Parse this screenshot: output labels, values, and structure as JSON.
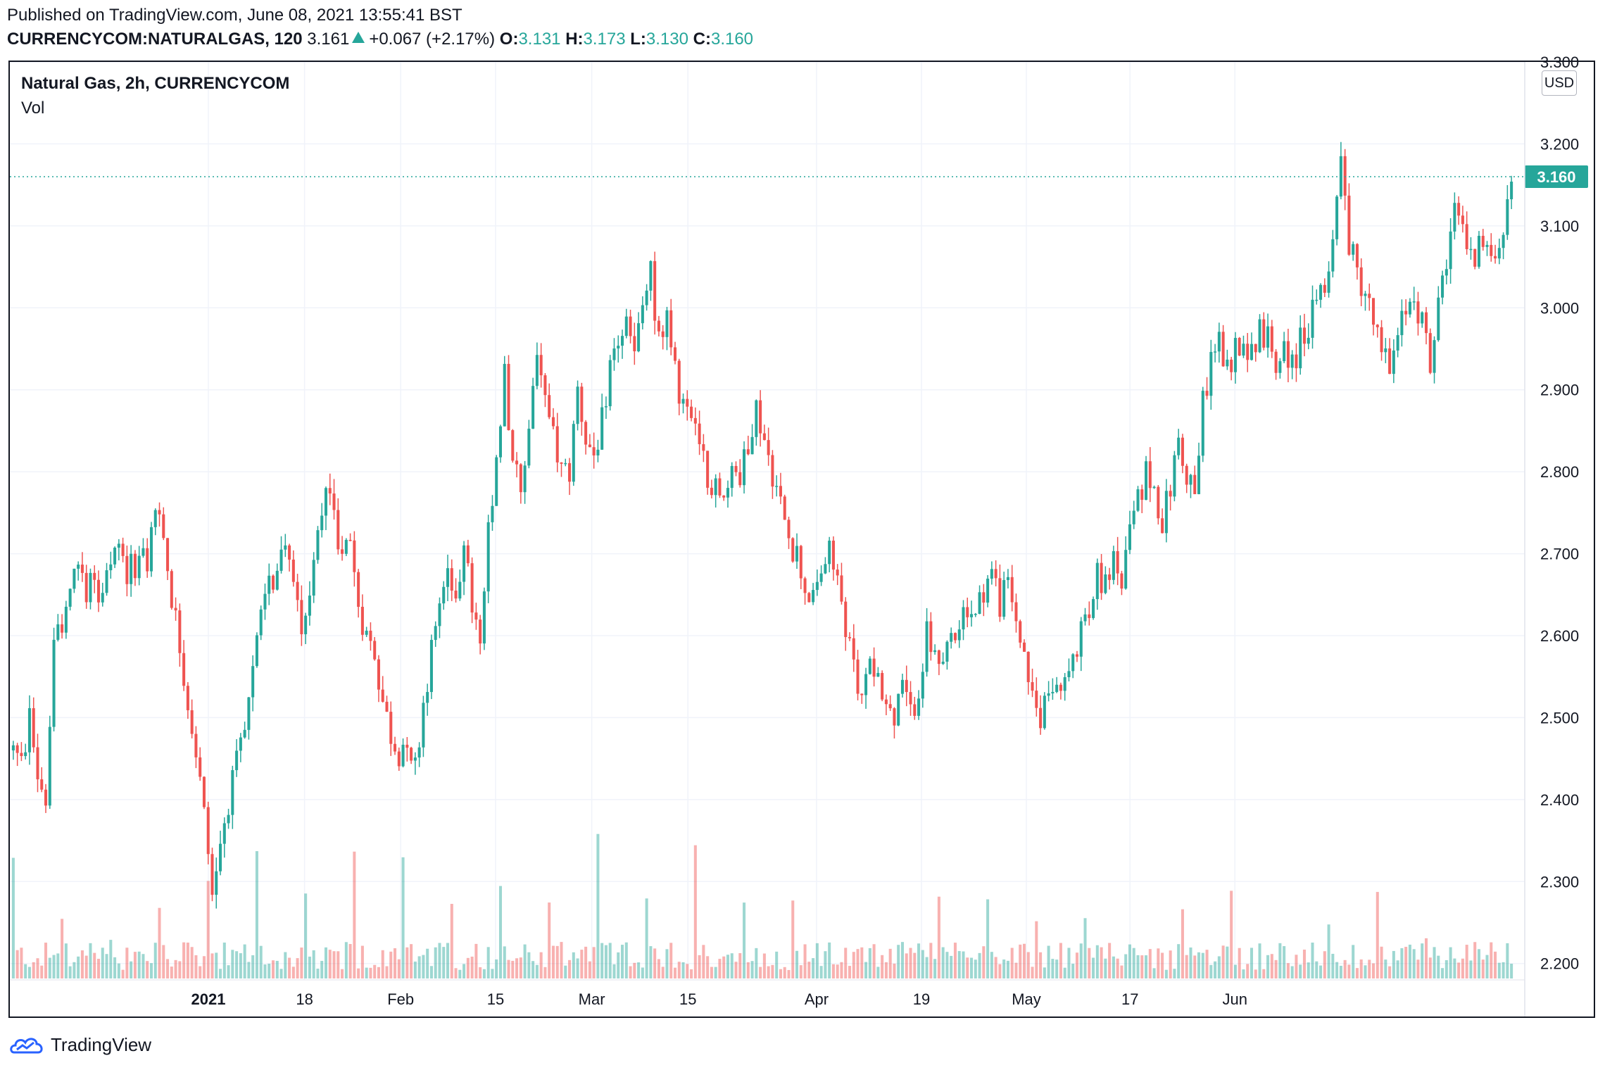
{
  "header": {
    "published": "Published on TradingView.com, June 08, 2021 13:55:41 BST",
    "symbol": "CURRENCYCOM:NATURALGAS, 120",
    "last": "3.161",
    "change": "+0.067 (+2.17%)",
    "open_label": "O:",
    "open": "3.131",
    "high_label": "H:",
    "high": "3.173",
    "low_label": "L:",
    "low": "3.130",
    "close_label": "C:",
    "close": "3.160"
  },
  "legend": {
    "title": "Natural Gas, 2h, CURRENCYCOM",
    "volume": "Vol"
  },
  "currency": "USD",
  "last_price_label": "3.160",
  "brand": "TradingView",
  "colors": {
    "up": "#26a69a",
    "down": "#ef5350",
    "grid": "#f0f3fa",
    "text": "#131722"
  },
  "chart_data": {
    "type": "candlestick",
    "title": "Natural Gas, 2h, CURRENCYCOM",
    "ylim": [
      2.18,
      3.3
    ],
    "y_ticks": [
      "3.300",
      "3.200",
      "3.100",
      "3.000",
      "2.900",
      "2.800",
      "2.700",
      "2.600",
      "2.500",
      "2.400",
      "2.300",
      "2.200"
    ],
    "x_ticks": [
      {
        "label": "2021",
        "t": 0.0,
        "bold": true
      },
      {
        "label": "18",
        "t": 0.077
      },
      {
        "label": "Feb",
        "t": 0.154
      },
      {
        "label": "15",
        "t": 0.23
      },
      {
        "label": "Mar",
        "t": 0.307
      },
      {
        "label": "15",
        "t": 0.384
      },
      {
        "label": "Apr",
        "t": 0.487
      },
      {
        "label": "19",
        "t": 0.571
      },
      {
        "label": "May",
        "t": 0.655
      },
      {
        "label": "17",
        "t": 0.738
      },
      {
        "label": "Jun",
        "t": 0.822
      }
    ],
    "last_price": 3.16,
    "path_points": [
      [
        0,
        2.46
      ],
      [
        2,
        2.44
      ],
      [
        4,
        2.5
      ],
      [
        6,
        2.43
      ],
      [
        8,
        2.4
      ],
      [
        10,
        2.58
      ],
      [
        12,
        2.62
      ],
      [
        14,
        2.66
      ],
      [
        16,
        2.69
      ],
      [
        18,
        2.66
      ],
      [
        20,
        2.68
      ],
      [
        22,
        2.64
      ],
      [
        24,
        2.68
      ],
      [
        26,
        2.7
      ],
      [
        28,
        2.67
      ],
      [
        30,
        2.69
      ],
      [
        33,
        2.69
      ],
      [
        35,
        2.76
      ],
      [
        37,
        2.72
      ],
      [
        39,
        2.65
      ],
      [
        41,
        2.59
      ],
      [
        43,
        2.52
      ],
      [
        45,
        2.46
      ],
      [
        47,
        2.38
      ],
      [
        49,
        2.29
      ],
      [
        51,
        2.35
      ],
      [
        53,
        2.4
      ],
      [
        55,
        2.44
      ],
      [
        57,
        2.48
      ],
      [
        59,
        2.55
      ],
      [
        61,
        2.62
      ],
      [
        63,
        2.66
      ],
      [
        65,
        2.68
      ],
      [
        67,
        2.72
      ],
      [
        69,
        2.66
      ],
      [
        71,
        2.62
      ],
      [
        73,
        2.65
      ],
      [
        75,
        2.72
      ],
      [
        77,
        2.8
      ],
      [
        79,
        2.74
      ],
      [
        81,
        2.7
      ],
      [
        83,
        2.72
      ],
      [
        85,
        2.64
      ],
      [
        87,
        2.6
      ],
      [
        89,
        2.58
      ],
      [
        91,
        2.52
      ],
      [
        93,
        2.48
      ],
      [
        95,
        2.46
      ],
      [
        97,
        2.48
      ],
      [
        99,
        2.44
      ],
      [
        101,
        2.52
      ],
      [
        103,
        2.58
      ],
      [
        105,
        2.64
      ],
      [
        107,
        2.68
      ],
      [
        109,
        2.66
      ],
      [
        111,
        2.7
      ],
      [
        113,
        2.64
      ],
      [
        115,
        2.58
      ],
      [
        117,
        2.72
      ],
      [
        119,
        2.8
      ],
      [
        121,
        2.92
      ],
      [
        123,
        2.82
      ],
      [
        125,
        2.76
      ],
      [
        127,
        2.86
      ],
      [
        129,
        2.95
      ],
      [
        131,
        2.88
      ],
      [
        133,
        2.84
      ],
      [
        135,
        2.8
      ],
      [
        137,
        2.8
      ],
      [
        139,
        2.9
      ],
      [
        141,
        2.84
      ],
      [
        143,
        2.82
      ],
      [
        145,
        2.86
      ],
      [
        147,
        2.93
      ],
      [
        149,
        2.96
      ],
      [
        151,
        2.98
      ],
      [
        153,
        2.94
      ],
      [
        155,
        3.0
      ],
      [
        157,
        3.04
      ],
      [
        159,
        2.96
      ],
      [
        161,
        2.98
      ],
      [
        163,
        2.92
      ],
      [
        165,
        2.88
      ],
      [
        167,
        2.86
      ],
      [
        169,
        2.82
      ],
      [
        171,
        2.8
      ],
      [
        173,
        2.78
      ],
      [
        175,
        2.76
      ],
      [
        177,
        2.82
      ],
      [
        179,
        2.78
      ],
      [
        181,
        2.84
      ],
      [
        183,
        2.88
      ],
      [
        185,
        2.84
      ],
      [
        187,
        2.8
      ],
      [
        189,
        2.76
      ],
      [
        191,
        2.72
      ],
      [
        193,
        2.7
      ],
      [
        195,
        2.66
      ],
      [
        197,
        2.64
      ],
      [
        199,
        2.68
      ],
      [
        201,
        2.7
      ],
      [
        203,
        2.67
      ],
      [
        205,
        2.6
      ],
      [
        207,
        2.56
      ],
      [
        209,
        2.52
      ],
      [
        211,
        2.58
      ],
      [
        213,
        2.55
      ],
      [
        215,
        2.52
      ],
      [
        217,
        2.49
      ],
      [
        219,
        2.54
      ],
      [
        221,
        2.5
      ],
      [
        223,
        2.54
      ],
      [
        225,
        2.6
      ],
      [
        227,
        2.57
      ],
      [
        229,
        2.55
      ],
      [
        231,
        2.6
      ],
      [
        233,
        2.62
      ],
      [
        235,
        2.64
      ],
      [
        237,
        2.62
      ],
      [
        239,
        2.66
      ],
      [
        241,
        2.68
      ],
      [
        243,
        2.64
      ],
      [
        245,
        2.66
      ],
      [
        247,
        2.62
      ],
      [
        249,
        2.58
      ],
      [
        251,
        2.52
      ],
      [
        253,
        2.5
      ],
      [
        255,
        2.54
      ],
      [
        257,
        2.56
      ],
      [
        259,
        2.54
      ],
      [
        261,
        2.57
      ],
      [
        263,
        2.6
      ],
      [
        265,
        2.62
      ],
      [
        267,
        2.68
      ],
      [
        269,
        2.66
      ],
      [
        271,
        2.7
      ],
      [
        273,
        2.66
      ],
      [
        275,
        2.72
      ],
      [
        277,
        2.76
      ],
      [
        279,
        2.8
      ],
      [
        281,
        2.78
      ],
      [
        283,
        2.74
      ],
      [
        285,
        2.78
      ],
      [
        287,
        2.84
      ],
      [
        289,
        2.8
      ],
      [
        291,
        2.78
      ],
      [
        293,
        2.88
      ],
      [
        295,
        2.94
      ],
      [
        297,
        2.96
      ],
      [
        299,
        2.92
      ],
      [
        301,
        2.95
      ],
      [
        303,
        2.97
      ],
      [
        305,
        2.94
      ],
      [
        307,
        2.98
      ],
      [
        309,
        2.96
      ],
      [
        311,
        2.94
      ],
      [
        313,
        2.96
      ],
      [
        315,
        2.93
      ],
      [
        317,
        2.96
      ],
      [
        319,
        2.98
      ],
      [
        321,
        3.0
      ],
      [
        323,
        3.02
      ],
      [
        325,
        3.1
      ],
      [
        327,
        3.18
      ],
      [
        329,
        3.08
      ],
      [
        331,
        3.04
      ],
      [
        333,
        3.02
      ],
      [
        335,
        2.98
      ],
      [
        337,
        2.95
      ],
      [
        339,
        2.92
      ],
      [
        341,
        2.96
      ],
      [
        343,
        3.0
      ],
      [
        345,
        3.02
      ],
      [
        347,
        2.98
      ],
      [
        349,
        2.94
      ],
      [
        351,
        3.0
      ],
      [
        353,
        3.04
      ],
      [
        355,
        3.12
      ],
      [
        357,
        3.1
      ],
      [
        359,
        3.06
      ],
      [
        361,
        3.08
      ],
      [
        363,
        3.06
      ],
      [
        365,
        3.08
      ],
      [
        367,
        3.1
      ],
      [
        369,
        3.16
      ]
    ]
  }
}
